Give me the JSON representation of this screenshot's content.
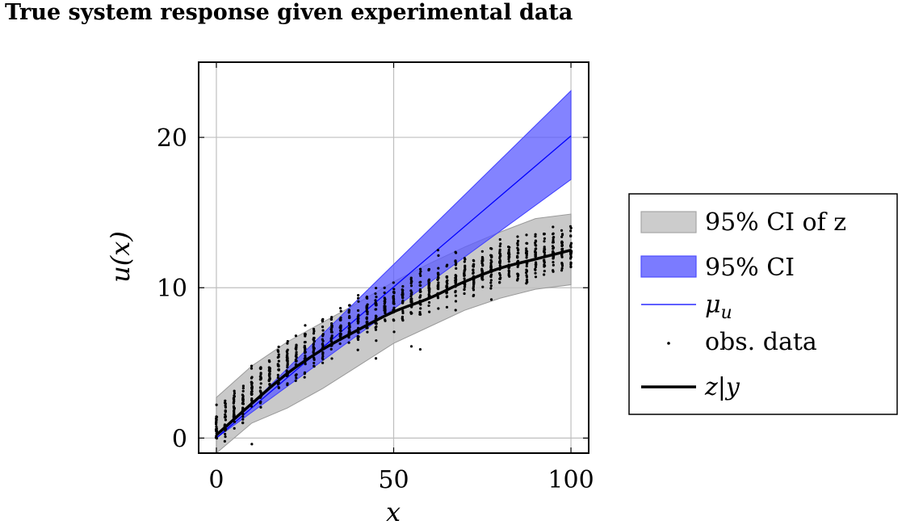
{
  "chart_data": {
    "type": "line",
    "title": "True system response given experimental data",
    "xlabel": "x",
    "ylabel": "u(x)",
    "xlim": [
      -5,
      105
    ],
    "ylim": [
      -1,
      25
    ],
    "xticks": [
      0,
      50,
      100
    ],
    "yticks": [
      0,
      10,
      20
    ],
    "grid": true,
    "legend_position": "outside-right",
    "legend": [
      "95% CI of z",
      "95% CI",
      "μ_u",
      "obs. data",
      "z|y"
    ],
    "series": [
      {
        "name": "95% CI of z",
        "kind": "band",
        "color": "#bfbfbf",
        "x": [
          0,
          10,
          20,
          30,
          40,
          50,
          60,
          70,
          80,
          90,
          100
        ],
        "lower": [
          -1.0,
          1.0,
          2.0,
          3.3,
          4.8,
          6.3,
          7.4,
          8.5,
          9.3,
          9.9,
          10.2
        ],
        "upper": [
          2.7,
          4.8,
          6.4,
          7.7,
          9.0,
          10.4,
          11.6,
          12.7,
          13.7,
          14.6,
          14.9
        ]
      },
      {
        "name": "95% CI",
        "kind": "band",
        "color": "#6b6bff",
        "x": [
          0,
          100
        ],
        "lower": [
          0,
          17.2
        ],
        "upper": [
          0,
          23.1
        ]
      },
      {
        "name": "μ_u",
        "kind": "line",
        "color": "#0000ff",
        "x": [
          0,
          100
        ],
        "y": [
          0,
          20.1
        ]
      },
      {
        "name": "z|y",
        "kind": "line",
        "color": "#000000",
        "x": [
          0,
          10,
          20,
          30,
          40,
          50,
          60,
          70,
          80,
          90,
          100
        ],
        "y": [
          0.2,
          2.3,
          4.3,
          5.9,
          7.2,
          8.4,
          9.3,
          10.4,
          11.3,
          11.9,
          12.5
        ]
      }
    ],
    "obs_data": {
      "name": "obs. data",
      "x": [
        0,
        2.5,
        5,
        7.5,
        10,
        12.5,
        15,
        17.5,
        20,
        22.5,
        25,
        27.5,
        30,
        32.5,
        35,
        37.5,
        40,
        42.5,
        45,
        47.5,
        50,
        52.5,
        55,
        57.5,
        60,
        62.5,
        65,
        67.5,
        70,
        72.5,
        75,
        77.5,
        80,
        82.5,
        85,
        87.5,
        90,
        92.5,
        95,
        97.5,
        100
      ],
      "y_low": [
        -1.0,
        -0.6,
        0.1,
        0.5,
        1.2,
        1.6,
        2.0,
        2.5,
        2.9,
        3.3,
        3.7,
        4.1,
        4.4,
        4.7,
        5.1,
        5.4,
        5.6,
        5.9,
        6.2,
        6.5,
        6.8,
        7.0,
        7.3,
        7.5,
        7.7,
        7.9,
        8.1,
        8.3,
        8.5,
        8.7,
        8.9,
        9.1,
        9.3,
        9.5,
        9.7,
        9.8,
        10.0,
        10.1,
        10.2,
        10.3,
        10.3
      ],
      "y_high": [
        2.8,
        3.4,
        4.0,
        4.6,
        5.2,
        5.7,
        6.3,
        6.7,
        7.2,
        7.5,
        8.0,
        8.3,
        8.7,
        9.0,
        9.4,
        9.6,
        9.9,
        10.3,
        10.5,
        10.8,
        11.1,
        11.3,
        11.6,
        11.9,
        12.1,
        12.4,
        12.6,
        12.8,
        13.0,
        13.2,
        13.4,
        13.6,
        13.8,
        14.0,
        14.2,
        14.3,
        14.5,
        14.6,
        14.7,
        14.8,
        14.8
      ],
      "outliers": [
        [
          10,
          -0.4
        ],
        [
          40,
          9.3
        ],
        [
          45,
          5.3
        ],
        [
          55,
          6.1
        ],
        [
          57.5,
          5.9
        ],
        [
          62.5,
          12.5
        ],
        [
          40,
          9.5
        ]
      ]
    }
  }
}
